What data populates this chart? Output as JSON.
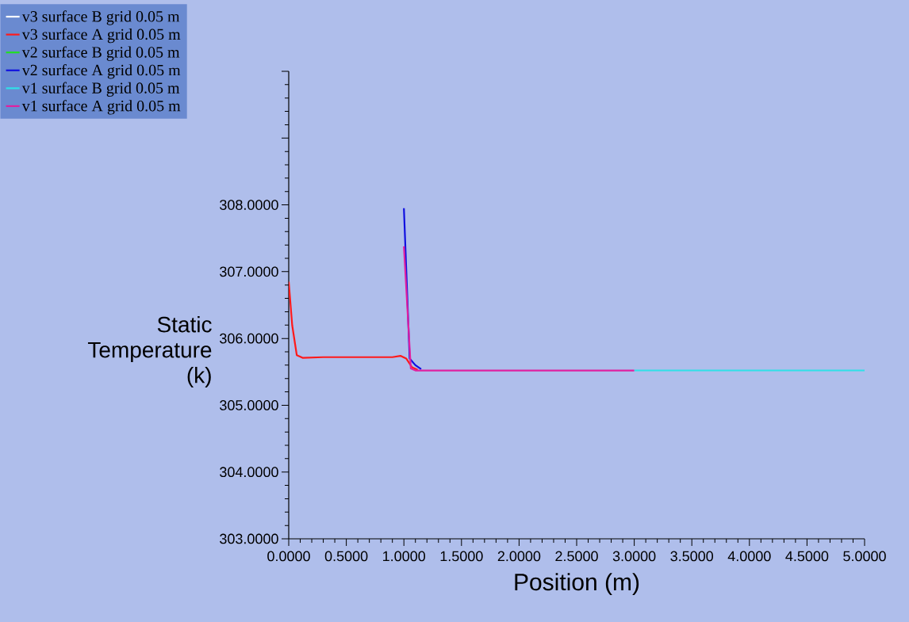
{
  "chart_data": {
    "type": "line",
    "xlabel": "Position (m)",
    "ylabel": "Static Temperature (k)",
    "xlim": [
      0,
      5
    ],
    "ylim": [
      303,
      310
    ],
    "xticks": [
      {
        "value": 0,
        "label": "0.0000"
      },
      {
        "value": 0.5,
        "label": "0.5000"
      },
      {
        "value": 1,
        "label": "1.0000"
      },
      {
        "value": 1.5,
        "label": "1.5000"
      },
      {
        "value": 2,
        "label": "2.0000"
      },
      {
        "value": 2.5,
        "label": "2.5000"
      },
      {
        "value": 3,
        "label": "3.0000"
      },
      {
        "value": 3.5,
        "label": "3.5000"
      },
      {
        "value": 4,
        "label": "4.0000"
      },
      {
        "value": 4.5,
        "label": "4.5000"
      },
      {
        "value": 5,
        "label": "5.0000"
      }
    ],
    "yticks": [
      {
        "value": 303,
        "label": "303.0000"
      },
      {
        "value": 304,
        "label": "304.0000"
      },
      {
        "value": 305,
        "label": "305.0000"
      },
      {
        "value": 306,
        "label": "306.0000"
      },
      {
        "value": 307,
        "label": "307.0000"
      },
      {
        "value": 308,
        "label": "308.0000"
      },
      {
        "value": 309,
        "label": null
      },
      {
        "value": 310,
        "label": null
      }
    ],
    "legend": "top left",
    "grid": false,
    "marker": "none",
    "line_style": "solid",
    "series": [
      {
        "name": "v3 surface B grid 0.05 m",
        "color": "#ffffff"
      },
      {
        "name": "v3 surface A grid 0.05 m",
        "color": "#ff1a1a",
        "x": [
          0,
          0.03,
          0.07,
          0.12,
          0.3,
          0.9,
          0.97,
          1.02,
          1.07,
          1.12
        ],
        "values": [
          306.85,
          306.2,
          305.75,
          305.71,
          305.72,
          305.72,
          305.74,
          305.7,
          305.57,
          305.53
        ]
      },
      {
        "name": "v2 surface B grid 0.05 m",
        "color": "#22e022"
      },
      {
        "name": "v2 surface A grid 0.05 m",
        "color": "#1010e0",
        "x": [
          1.0,
          1.05,
          1.1,
          1.15
        ],
        "values": [
          307.95,
          305.7,
          305.6,
          305.54
        ]
      },
      {
        "name": "v1 surface B grid 0.05 m",
        "color": "#30e0e8",
        "x": [
          3.0,
          5.0
        ],
        "values": [
          305.52,
          305.52
        ]
      },
      {
        "name": "v1 surface A grid 0.05 m",
        "color": "#e020a0",
        "x": [
          1.0,
          1.06,
          1.1,
          1.15,
          3.0
        ],
        "values": [
          307.38,
          305.55,
          305.52,
          305.52,
          305.52
        ]
      }
    ]
  }
}
